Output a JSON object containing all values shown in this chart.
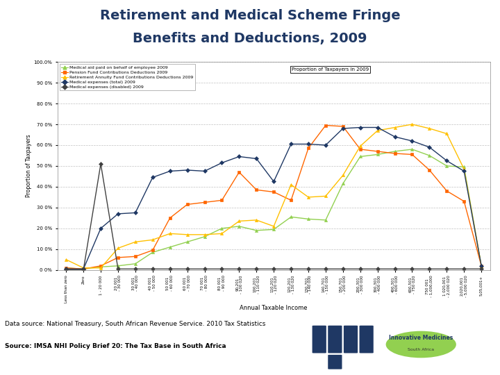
{
  "title_line1": "Retirement and Medical Scheme Fringe",
  "title_line2": "Benefits and Deductions, 2009",
  "title_color": "#1F3864",
  "xlabel": "Annual Taxable Income",
  "ylabel": "Proportion of Taxpayers",
  "footnote1": "Data source: National Treasury, South African Revenue Service. 2010 Tax Statistics",
  "footnote2": "Source: IMSA NHI Policy Brief 20: The Tax Base in South Africa",
  "x_labels": [
    "Less than zero",
    "Zero",
    "1 - 20 000",
    "20 001\n- 30 000",
    "30 001\n- 40 000",
    "40 001\n- 50 000",
    "50 001\n- 60 000",
    "60 001\n- 70 000",
    "70 001\n- 80 000",
    "80 001\n- 90 000",
    "90,201\n- 100 020",
    "100,201\n- 110 020",
    "110,201\n- 120 020",
    "120,201\n- 130 020",
    "130,701\n- 140 000",
    "140,701\n- 150 000",
    "150,701\n- 200 000",
    "200,301\n- 300 000",
    "300,301\n- 400 000",
    "400,301\n- 600 000",
    "600,501\n- 750 020",
    "750 001\n- 1,000,000",
    "1 020,001\n- 2,000 020",
    "2,020,001\n- 5,000 020",
    "5,05,001+"
  ],
  "series": [
    {
      "name": "Medical aid paid on behalf of employee 2009",
      "color": "#92D050",
      "marker": "^",
      "values": [
        1.0,
        0.5,
        1.5,
        2.0,
        3.0,
        8.5,
        11.0,
        13.5,
        16.0,
        20.0,
        21.0,
        19.0,
        19.5,
        25.5,
        24.5,
        24.0,
        41.5,
        54.5,
        55.5,
        57.0,
        58.0,
        55.0,
        50.0,
        49.5,
        2.0
      ]
    },
    {
      "name": "Pension Fund Contributions Deductions 2009",
      "color": "#FF6600",
      "marker": "s",
      "values": [
        1.0,
        0.5,
        2.0,
        6.0,
        6.5,
        9.5,
        25.0,
        31.5,
        32.5,
        33.5,
        47.0,
        38.5,
        37.5,
        33.5,
        58.5,
        69.5,
        69.0,
        58.0,
        57.0,
        56.0,
        55.5,
        48.0,
        38.0,
        33.0,
        2.0
      ]
    },
    {
      "name": "Retirement Annuity Fund Contributions Deductions 2009",
      "color": "#FFC000",
      "marker": "^",
      "values": [
        5.0,
        1.0,
        1.0,
        10.5,
        13.5,
        14.5,
        17.5,
        17.0,
        17.0,
        17.5,
        23.5,
        24.0,
        21.0,
        41.0,
        35.0,
        35.5,
        45.5,
        59.5,
        67.0,
        68.5,
        70.0,
        68.0,
        65.5,
        48.5,
        2.0
      ]
    },
    {
      "name": "Medical expenses (total) 2009",
      "color": "#1F3864",
      "marker": "D",
      "values": [
        0.5,
        0.5,
        20.0,
        27.0,
        27.5,
        44.5,
        47.5,
        48.0,
        47.5,
        51.5,
        54.5,
        53.5,
        42.5,
        60.5,
        60.5,
        60.0,
        68.0,
        68.5,
        68.5,
        64.0,
        62.0,
        59.0,
        52.5,
        47.5,
        2.0
      ]
    },
    {
      "name": "Medical expenses (disabled) 2009",
      "color": "#404040",
      "marker": "D",
      "values": [
        0.2,
        0.2,
        51.0,
        0.5,
        0.5,
        0.5,
        0.5,
        0.5,
        0.5,
        0.5,
        0.5,
        0.5,
        0.5,
        0.5,
        0.5,
        0.5,
        0.5,
        0.5,
        0.5,
        0.5,
        0.5,
        0.5,
        0.5,
        0.5,
        0.5
      ]
    }
  ],
  "legend_annotation": "Proportion of Taxpayers in 2009",
  "ylim": [
    0,
    100
  ],
  "yticks": [
    0,
    10,
    20,
    30,
    40,
    50,
    60,
    70,
    80,
    90,
    100
  ],
  "ytick_labels": [
    "0 0%",
    "10 0%",
    "20 0%",
    "30 0%",
    "40 0%",
    "50 0%",
    "60 0%",
    "70 0%",
    "80 0%",
    "90 0%",
    "100.0%"
  ],
  "background_color": "#FFFFFF",
  "chart_bg": "#FFFFFF",
  "grid_color": "#C0C0C0",
  "title_fontsize": 14,
  "footnote1_bold": false,
  "footnote2_bold": false
}
